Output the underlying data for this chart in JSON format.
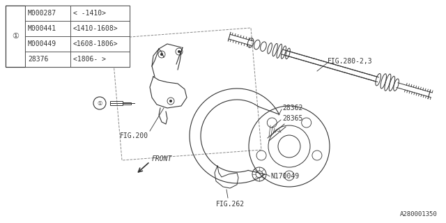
{
  "bg_color": "#ffffff",
  "line_color": "#333333",
  "part_number": "A280001350",
  "table_rows": [
    {
      "part": "M000287",
      "range": "< -1410>"
    },
    {
      "part": "M000441",
      "range": "<1410-1608>"
    },
    {
      "part": "M000449",
      "range": "<1608-1806>"
    },
    {
      "part": "28376",
      "range": "<1806- >"
    }
  ],
  "figsize": [
    6.4,
    3.2
  ],
  "dpi": 100
}
